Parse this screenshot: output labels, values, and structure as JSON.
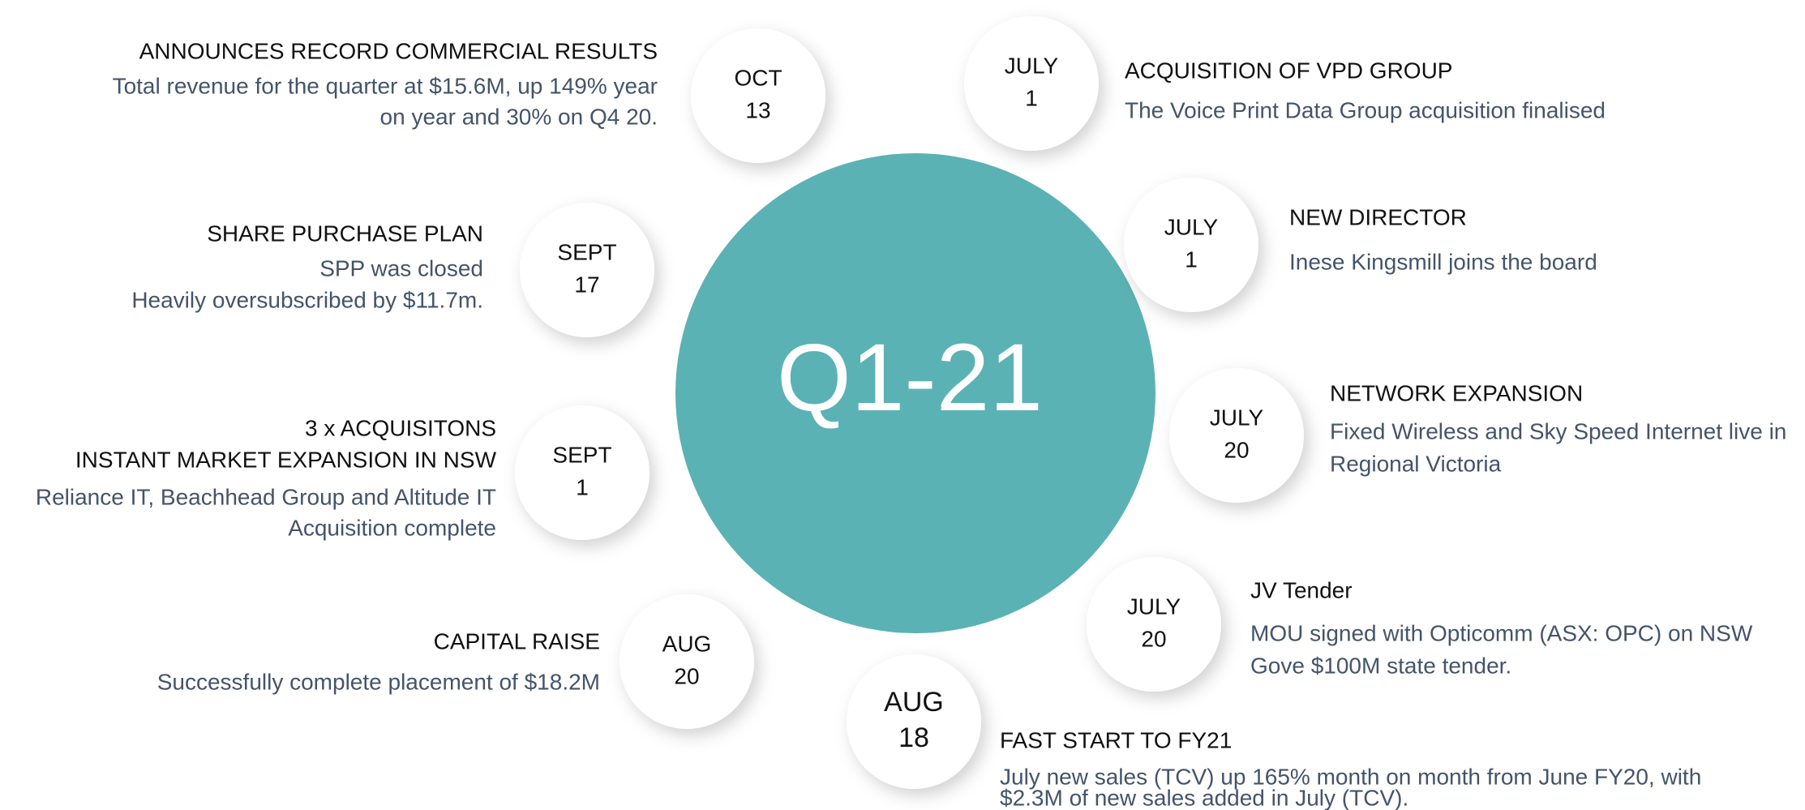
{
  "center": "Q1-21",
  "events": [
    {
      "month": "OCT",
      "day": "13",
      "title": [
        "ANNOUNCES RECORD COMMERCIAL RESULTS"
      ],
      "description": [
        "Total revenue for the quarter at $15.6M, up 149% year",
        "on year and 30% on Q4 20."
      ]
    },
    {
      "month": "JULY",
      "day": "1",
      "title": [
        "ACQUISITION OF VPD GROUP"
      ],
      "description": [
        "The Voice Print Data Group acquisition finalised"
      ]
    },
    {
      "month": "SEPT",
      "day": "17",
      "title": [
        "SHARE PURCHASE PLAN"
      ],
      "description": [
        "SPP was closed",
        "Heavily oversubscribed by $11.7m."
      ]
    },
    {
      "month": "JULY",
      "day": "1",
      "title": [
        "NEW DIRECTOR"
      ],
      "description": [
        "Inese Kingsmill joins the board"
      ]
    },
    {
      "month": "SEPT",
      "day": "1",
      "title": [
        "3 x ACQUISITONS",
        "INSTANT MARKET EXPANSION IN NSW"
      ],
      "description": [
        "Reliance IT, Beachhead Group and Altitude IT",
        "Acquisition complete"
      ]
    },
    {
      "month": "JULY",
      "day": "20",
      "title": [
        "NETWORK EXPANSION"
      ],
      "description": [
        "Fixed Wireless and Sky Speed Internet live in",
        "Regional Victoria"
      ]
    },
    {
      "month": "AUG",
      "day": "20",
      "title": [
        "CAPITAL RAISE"
      ],
      "description": [
        "Successfully complete placement of $18.2M"
      ]
    },
    {
      "month": "JULY",
      "day": "20",
      "title": [
        "JV Tender"
      ],
      "description": [
        "MOU signed with Opticomm (ASX: OPC) on NSW",
        "Gove $100M state tender."
      ]
    },
    {
      "month": "AUG",
      "day": "18",
      "title": [
        "FAST START TO FY21"
      ],
      "description": [
        "July new sales (TCV) up 165% month on month from June FY20, with",
        "$2.3M of new sales added in July (TCV)."
      ]
    }
  ]
}
